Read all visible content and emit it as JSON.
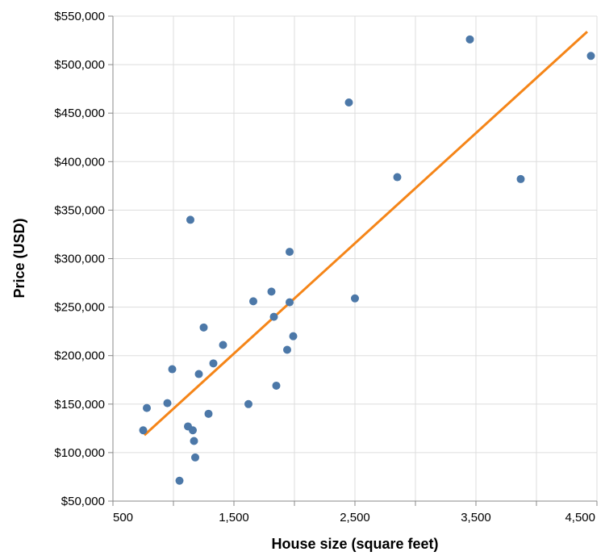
{
  "chart_data": {
    "type": "scatter",
    "xlabel": "House size (square feet)",
    "ylabel": "Price (USD)",
    "xlim": [
      500,
      4500
    ],
    "ylim": [
      50000,
      550000
    ],
    "x_ticks": [
      500,
      1000,
      1500,
      2000,
      2500,
      3000,
      3500,
      4000,
      4500
    ],
    "x_tick_labels": [
      "500",
      "",
      "1,500",
      "",
      "2,500",
      "",
      "3,500",
      "",
      "4,500"
    ],
    "y_ticks": [
      50000,
      100000,
      150000,
      200000,
      250000,
      300000,
      350000,
      400000,
      450000,
      500000,
      550000
    ],
    "y_tick_labels": [
      "$50,000",
      "$100,000",
      "$150,000",
      "$200,000",
      "$250,000",
      "$300,000",
      "$350,000",
      "$400,000",
      "$450,000",
      "$500,000",
      "$550,000"
    ],
    "grid": true,
    "point_color": "#4c78a8",
    "trend_color": "#f58518",
    "points": [
      {
        "x": 750,
        "y": 123000
      },
      {
        "x": 780,
        "y": 146000
      },
      {
        "x": 950,
        "y": 151000
      },
      {
        "x": 990,
        "y": 186000
      },
      {
        "x": 1050,
        "y": 71000
      },
      {
        "x": 1120,
        "y": 127000
      },
      {
        "x": 1140,
        "y": 340000
      },
      {
        "x": 1160,
        "y": 123000
      },
      {
        "x": 1170,
        "y": 112000
      },
      {
        "x": 1180,
        "y": 95000
      },
      {
        "x": 1210,
        "y": 181000
      },
      {
        "x": 1250,
        "y": 229000
      },
      {
        "x": 1290,
        "y": 140000
      },
      {
        "x": 1330,
        "y": 192000
      },
      {
        "x": 1410,
        "y": 211000
      },
      {
        "x": 1620,
        "y": 150000
      },
      {
        "x": 1660,
        "y": 256000
      },
      {
        "x": 1810,
        "y": 266000
      },
      {
        "x": 1830,
        "y": 240000
      },
      {
        "x": 1850,
        "y": 169000
      },
      {
        "x": 1940,
        "y": 206000
      },
      {
        "x": 1960,
        "y": 255000
      },
      {
        "x": 1960,
        "y": 307000
      },
      {
        "x": 1990,
        "y": 220000
      },
      {
        "x": 2450,
        "y": 461000
      },
      {
        "x": 2500,
        "y": 259000
      },
      {
        "x": 2850,
        "y": 384000
      },
      {
        "x": 3450,
        "y": 526000
      },
      {
        "x": 3870,
        "y": 382000
      },
      {
        "x": 4450,
        "y": 509000
      }
    ],
    "trendline": [
      {
        "x": 760,
        "y": 118000
      },
      {
        "x": 4420,
        "y": 534000
      }
    ]
  }
}
